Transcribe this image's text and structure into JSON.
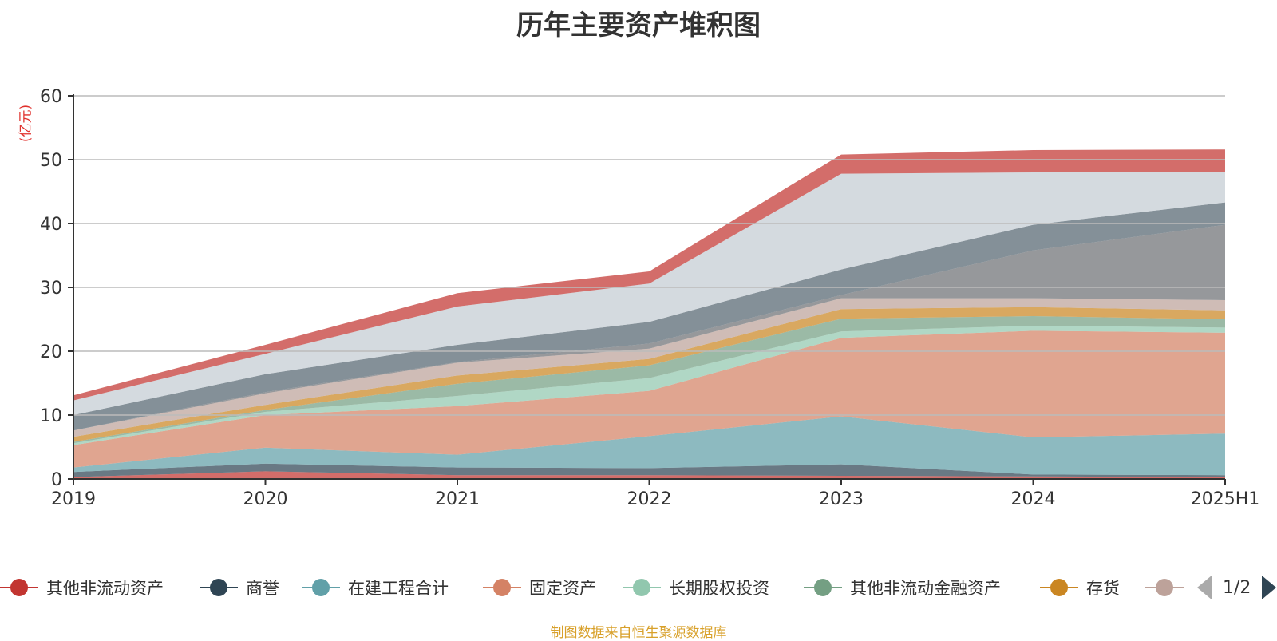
{
  "title": "历年主要资产堆积图",
  "unit": "(亿元)",
  "source": "制图数据来自恒生聚源数据库",
  "pager": {
    "text": "1/2"
  },
  "chart_data": {
    "type": "area",
    "stacked": true,
    "categories": [
      "2019",
      "2020",
      "2021",
      "2022",
      "2023",
      "2024",
      "2025H1"
    ],
    "ylim": [
      0,
      60
    ],
    "yticks": [
      0,
      10,
      20,
      30,
      40,
      50,
      60
    ],
    "grid": true,
    "legend_position": "bottom",
    "series": [
      {
        "name": "其他非流动资产",
        "color": "#c23531",
        "legend": true,
        "values": [
          0.3,
          1.2,
          0.6,
          0.6,
          0.5,
          0.4,
          0.3
        ]
      },
      {
        "name": "商誉",
        "color": "#2f4554",
        "legend": true,
        "values": [
          0.8,
          1.2,
          1.2,
          1.1,
          1.8,
          0.3,
          0.3
        ]
      },
      {
        "name": "在建工程合计",
        "color": "#61a0a8",
        "legend": true,
        "values": [
          0.7,
          2.5,
          2.0,
          5.0,
          7.5,
          5.8,
          6.5
        ]
      },
      {
        "name": "固定资产",
        "color": "#d48265",
        "legend": true,
        "values": [
          3.5,
          5.1,
          7.6,
          7.1,
          12.3,
          16.7,
          15.8
        ]
      },
      {
        "name": "长期股权投资",
        "color": "#91c7ae",
        "legend": true,
        "values": [
          0.3,
          0.5,
          1.6,
          2.0,
          1.0,
          0.8,
          0.8
        ]
      },
      {
        "name": "其他非流动金融资产",
        "color": "#749f83",
        "legend": true,
        "values": [
          0.2,
          0.3,
          1.9,
          2.0,
          2.0,
          1.5,
          1.3
        ]
      },
      {
        "name": "存货",
        "color": "#ca8622",
        "legend": true,
        "values": [
          0.8,
          0.8,
          1.3,
          1.0,
          1.5,
          1.4,
          1.4
        ]
      },
      {
        "name": "",
        "color": "#bda29a",
        "legend": true,
        "values": [
          1.0,
          1.8,
          2.0,
          1.6,
          1.7,
          1.4,
          1.6
        ]
      },
      {
        "name": "",
        "color": "#6e7074",
        "legend": false,
        "values": [
          0,
          0.2,
          0.1,
          0.8,
          0.5,
          7.5,
          11.8
        ]
      },
      {
        "name": "",
        "color": "#546570",
        "legend": false,
        "values": [
          2.4,
          2.8,
          2.7,
          3.4,
          4.0,
          4.0,
          3.5
        ]
      },
      {
        "name": "",
        "color": "#c4ccd3",
        "legend": false,
        "values": [
          2.3,
          3.2,
          6.0,
          6.0,
          15.0,
          8.2,
          4.8
        ]
      },
      {
        "name": "",
        "color": "#c23531",
        "legend": false,
        "values": [
          0.8,
          1.4,
          2.1,
          1.9,
          3.0,
          3.5,
          3.5
        ]
      }
    ]
  }
}
